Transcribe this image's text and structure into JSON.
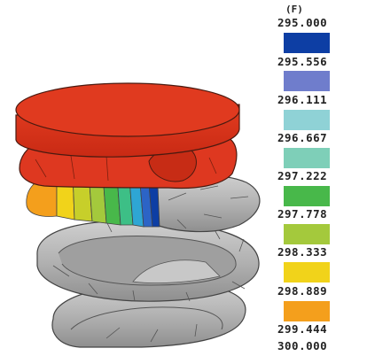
{
  "legend": {
    "unit": "(F)",
    "labels": [
      "295.000",
      "295.556",
      "296.111",
      "296.667",
      "297.222",
      "297.778",
      "298.333",
      "298.889",
      "299.444",
      "300.000"
    ],
    "colors": [
      "#0d3ea4",
      "#6f7dcc",
      "#8fd2d6",
      "#7ecfb8",
      "#48b84a",
      "#a4c93c",
      "#f1d31a",
      "#f49f1c",
      "#e8391e"
    ]
  },
  "model": {
    "spring_color": "#b4b4b4",
    "cap_color": "#e03a1f"
  }
}
